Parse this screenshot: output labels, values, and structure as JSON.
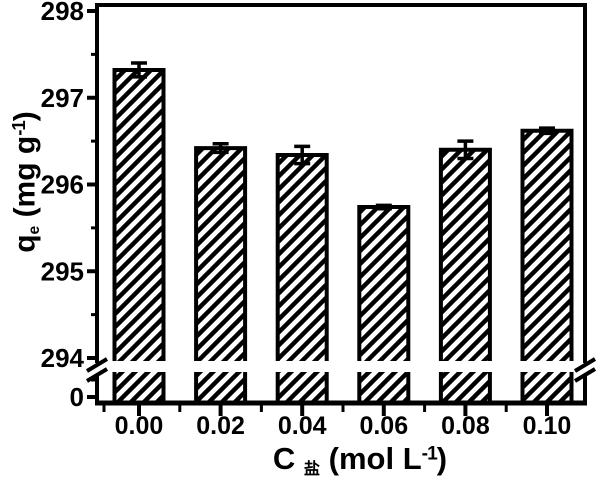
{
  "chart_data": {
    "type": "bar",
    "title": "",
    "categories": [
      "0.00",
      "0.02",
      "0.04",
      "0.06",
      "0.08",
      "0.10"
    ],
    "values": [
      297.32,
      296.42,
      296.34,
      295.74,
      296.4,
      296.62
    ],
    "errors": [
      0.08,
      0.05,
      0.1,
      0.02,
      0.1,
      0.03
    ],
    "xlabel": "C盐 (mol L-1)",
    "ylabel": "qe (mg g-1)",
    "y_major_ticks": [
      298,
      297,
      296,
      295,
      294
    ],
    "y_break": {
      "label": "0",
      "between": [
        0,
        294
      ]
    },
    "ylim": [
      294,
      298
    ],
    "grid": false,
    "legend": null,
    "bar_style": {
      "fill": "diagonal-hatch",
      "color": "#000000",
      "background": "#ffffff"
    }
  },
  "y_axis": {
    "title_main": "q",
    "title_sub": "e",
    "title_mid": " (mg g",
    "title_sup": "-1",
    "title_end": ")"
  },
  "x_axis": {
    "title_main": "C",
    "title_sub": "盐",
    "title_mid": " (mol L",
    "title_sup": "-1",
    "title_end": ")"
  }
}
